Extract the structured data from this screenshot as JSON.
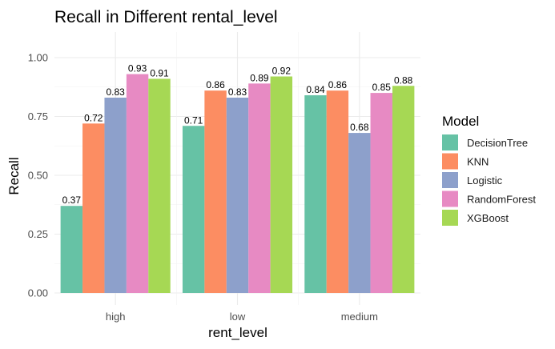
{
  "chart_data": {
    "type": "bar",
    "title": "Recall in Different rental_level",
    "xlabel": "rent_level",
    "ylabel": "Recall",
    "categories": [
      "high",
      "low",
      "medium"
    ],
    "ylim": [
      0,
      1.1
    ],
    "yticks": [
      0.0,
      0.25,
      0.5,
      0.75,
      1.0
    ],
    "ytick_labels": [
      "0.00",
      "0.25",
      "0.50",
      "0.75",
      "1.00"
    ],
    "grid": true,
    "legend": {
      "title": "Model",
      "position": "right"
    },
    "series": [
      {
        "name": "DecisionTree",
        "color": "#66C2A5",
        "values": [
          0.37,
          0.71,
          0.84
        ]
      },
      {
        "name": "KNN",
        "color": "#FC8D62",
        "values": [
          0.72,
          0.86,
          0.86
        ]
      },
      {
        "name": "Logistic",
        "color": "#8DA0CB",
        "values": [
          0.83,
          0.83,
          0.68
        ]
      },
      {
        "name": "RandomForest",
        "color": "#E78AC3",
        "values": [
          0.93,
          0.89,
          0.85
        ]
      },
      {
        "name": "XGBoost",
        "color": "#A6D854",
        "values": [
          0.91,
          0.92,
          0.88
        ]
      }
    ]
  }
}
